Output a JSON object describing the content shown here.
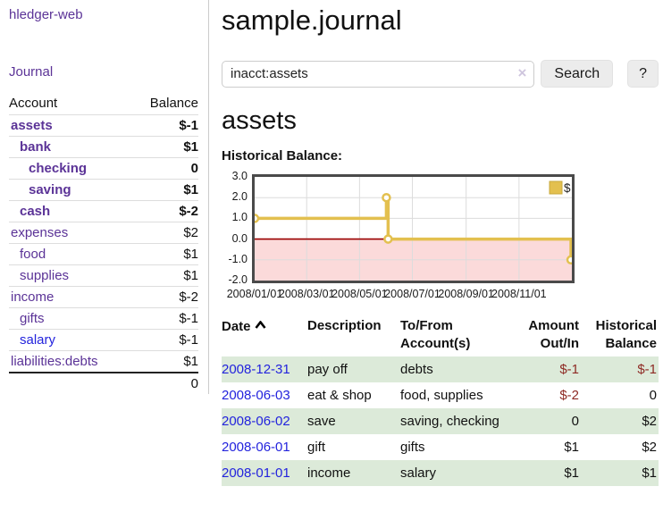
{
  "colors": {
    "purple": "#5b3397",
    "blue": "#2323dd",
    "neg": "#871414",
    "dim": "#c28f8f",
    "table_neg": "#8e2a24",
    "row_green": "#dcead9",
    "gold": "#e3c04f",
    "gold_border": "#c7a93c",
    "pink": "#fbdada",
    "zero_red": "#990000",
    "grid": "#dcdcdc"
  },
  "sidebar": {
    "app_title": "hledger-web",
    "journal_link": "Journal",
    "table": {
      "account_header": "Account",
      "balance_header": "Balance",
      "total": "0",
      "accounts": [
        {
          "name": "assets",
          "level": 0,
          "bold": true,
          "name_style": "purple",
          "balance": "$-1",
          "balance_style": "neg"
        },
        {
          "name": "bank",
          "level": 1,
          "bold": true,
          "name_style": "purple",
          "balance": "$1",
          "balance_style": "plain"
        },
        {
          "name": "checking",
          "level": 2,
          "bold": true,
          "name_style": "purple",
          "balance": "0",
          "balance_style": "plain"
        },
        {
          "name": "saving",
          "level": 2,
          "bold": true,
          "name_style": "purple",
          "balance": "$1",
          "balance_style": "plain"
        },
        {
          "name": "cash",
          "level": 1,
          "bold": true,
          "name_style": "purple",
          "balance": "$-2",
          "balance_style": "neg"
        },
        {
          "name": "expenses",
          "level": 0,
          "bold": false,
          "name_style": "purple",
          "balance": "$2",
          "balance_style": "plain"
        },
        {
          "name": "food",
          "level": 1,
          "bold": false,
          "name_style": "purple",
          "balance": "$1",
          "balance_style": "plain"
        },
        {
          "name": "supplies",
          "level": 1,
          "bold": false,
          "name_style": "purple",
          "balance": "$1",
          "balance_style": "plain"
        },
        {
          "name": "income",
          "level": 0,
          "bold": false,
          "name_style": "purple",
          "balance": "$-2",
          "balance_style": "dim"
        },
        {
          "name": "gifts",
          "level": 1,
          "bold": false,
          "name_style": "purple",
          "balance": "$-1",
          "balance_style": "dim"
        },
        {
          "name": "salary",
          "level": 1,
          "bold": false,
          "name_style": "blue",
          "balance": "$-1",
          "balance_style": "dim"
        },
        {
          "name": "liabilities:debts",
          "level": 0,
          "bold": false,
          "name_style": "purple",
          "balance": "$1",
          "balance_style": "plain"
        }
      ]
    }
  },
  "main": {
    "title": "sample.journal",
    "search": {
      "value": "inacct:assets",
      "clear_icon": "×",
      "button_label": "Search",
      "help_label": "?"
    },
    "account_heading": "assets",
    "chart_label": "Historical Balance:",
    "register": {
      "headers": {
        "date": "Date",
        "description": "Description",
        "accounts": "To/From Account(s)",
        "amount": "Amount Out/In",
        "balance": "Historical Balance"
      },
      "rows": [
        {
          "date": "2008-12-31",
          "description": "pay off",
          "accounts": "debts",
          "amount": "$-1",
          "amount_style": "rneg",
          "balance": "$-1",
          "balance_style": "rneg",
          "shaded": true
        },
        {
          "date": "2008-06-03",
          "description": "eat & shop",
          "accounts": "food, supplies",
          "amount": "$-2",
          "amount_style": "rneg",
          "balance": "0",
          "balance_style": "plain",
          "shaded": false
        },
        {
          "date": "2008-06-02",
          "description": "save",
          "accounts": "saving, checking",
          "amount": "0",
          "amount_style": "plain",
          "balance": "$2",
          "balance_style": "plain",
          "shaded": true
        },
        {
          "date": "2008-06-01",
          "description": "gift",
          "accounts": "gifts",
          "amount": "$1",
          "amount_style": "plain",
          "balance": "$2",
          "balance_style": "plain",
          "shaded": false
        },
        {
          "date": "2008-01-01",
          "description": "income",
          "accounts": "salary",
          "amount": "$1",
          "amount_style": "plain",
          "balance": "$1",
          "balance_style": "plain",
          "shaded": true
        }
      ]
    }
  },
  "chart_data": {
    "type": "line",
    "step": "after",
    "title": "Historical Balance",
    "legend": "$",
    "legend_position": "top-right",
    "grid": true,
    "x_range": [
      "2008-01-01",
      "2009-01-01"
    ],
    "ylim": [
      -2,
      3
    ],
    "yticks": [
      {
        "value": 3,
        "label": "3.0"
      },
      {
        "value": 2,
        "label": "2.0"
      },
      {
        "value": 1,
        "label": "1.0"
      },
      {
        "value": 0,
        "label": "0.0"
      },
      {
        "value": -1,
        "label": "-1.0"
      },
      {
        "value": -2,
        "label": "-2.0"
      }
    ],
    "xticks": [
      {
        "date": "2008-01-01",
        "label": "2008/01/01"
      },
      {
        "date": "2008-03-01",
        "label": "2008/03/01"
      },
      {
        "date": "2008-05-01",
        "label": "2008/05/01"
      },
      {
        "date": "2008-07-01",
        "label": "2008/07/01"
      },
      {
        "date": "2008-09-01",
        "label": "2008/09/01"
      },
      {
        "date": "2008-11-01",
        "label": "2008/11/01"
      }
    ],
    "series": [
      {
        "name": "$",
        "points": [
          [
            "2008-01-01",
            1
          ],
          [
            "2008-06-01",
            2
          ],
          [
            "2008-06-03",
            0
          ],
          [
            "2008-12-31",
            -1
          ]
        ]
      }
    ]
  }
}
